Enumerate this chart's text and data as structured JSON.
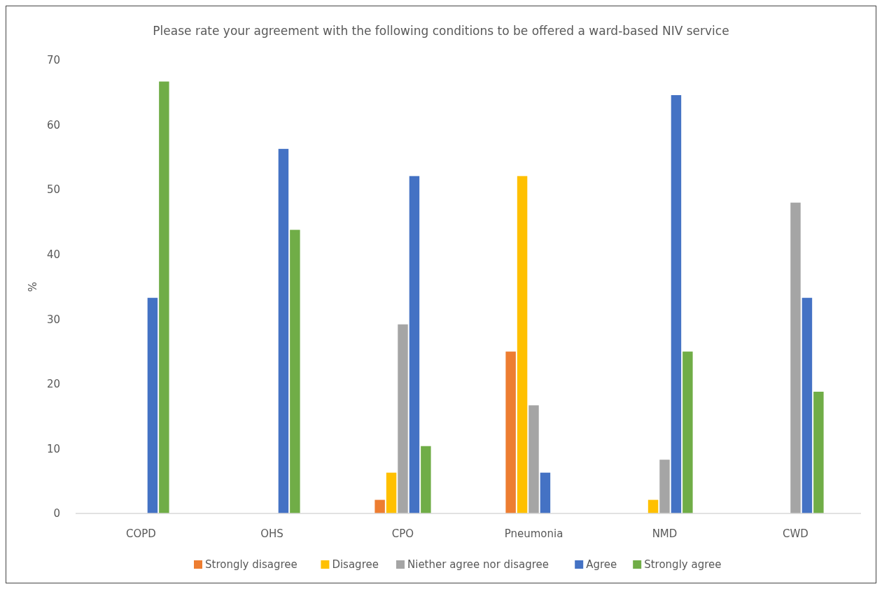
{
  "chart_data": {
    "type": "bar",
    "title": "Please rate your agreement with the following conditions to be offered a ward-based NIV service",
    "ylabel": "%",
    "categories": [
      "COPD",
      "OHS",
      "CPO",
      "Pneumonia",
      "NMD",
      "CWD"
    ],
    "series": [
      {
        "name": "Strongly disagree",
        "color": "#ed7d31",
        "values": [
          0,
          0,
          2.1,
          25,
          0,
          0
        ]
      },
      {
        "name": "Disagree",
        "color": "#ffc000",
        "values": [
          0,
          0,
          6.3,
          52.1,
          2.1,
          0
        ]
      },
      {
        "name": "Niether agree nor disagree",
        "color": "#a5a5a5",
        "values": [
          0,
          0,
          29.2,
          16.7,
          8.3,
          48
        ]
      },
      {
        "name": "Agree",
        "color": "#4472c4",
        "values": [
          33.3,
          56.3,
          52.1,
          6.3,
          64.6,
          33.3
        ]
      },
      {
        "name": "Strongly agree",
        "color": "#70ad47",
        "values": [
          66.7,
          43.8,
          10.4,
          0,
          25,
          18.8
        ]
      }
    ],
    "ylim": [
      0,
      70
    ],
    "yticks": [
      0,
      10,
      20,
      30,
      40,
      50,
      60,
      70
    ],
    "grid": false,
    "legend": "bottom"
  }
}
